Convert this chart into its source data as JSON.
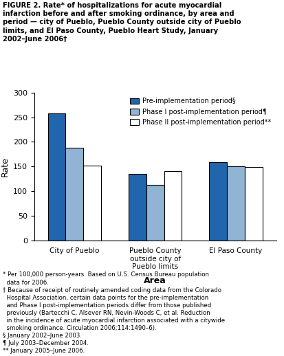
{
  "title": "FIGURE 2. Rate* of hospitalizations for acute myocardial\ninfarction before and after smoking ordinance, by area and\nperiod — city of Pueblo, Pueblo County outside city of Pueblo\nlimits, and El Paso County, Pueblo Heart Study, January\n2002–June 2006†",
  "categories": [
    "City of Pueblo",
    "Pueblo County\noutside city of\nPueblo limits",
    "El Paso County"
  ],
  "series_names": [
    "Pre-implementation period§",
    "Phase I post-implementation period¶",
    "Phase II post-implementation period**"
  ],
  "series_values": [
    [
      257,
      135,
      158
    ],
    [
      188,
      113,
      150
    ],
    [
      152,
      140,
      149
    ]
  ],
  "colors": [
    "#2166ac",
    "#92b4d4",
    "#ffffff"
  ],
  "ylabel": "Rate",
  "xlabel": "Area",
  "ylim": [
    0,
    300
  ],
  "yticks": [
    0,
    50,
    100,
    150,
    200,
    250,
    300
  ],
  "footnote_lines": [
    "* Per 100,000 person-years. Based on U.S. Census Bureau population",
    "  data for 2006.",
    "† Because of receipt of routinely amended coding data from the Colorado",
    "  Hospital Association, certain data points for the pre-implementation",
    "  and Phase I post-implementation periods differ from those published",
    "  previously (Bartecchi C, Alsever RN, Nevin-Woods C, et al. Reduction",
    "  in the incidence of acute myocardial infarction associated with a citywide",
    "  smoking ordinance. Circulation 2006;114:1490–6).",
    "§ January 2002–June 2003.",
    "¶ July 2003–December 2004.",
    "** January 2005–June 2006."
  ],
  "bar_edge_color": "#000000",
  "bar_width": 0.22,
  "background_color": "#ffffff"
}
